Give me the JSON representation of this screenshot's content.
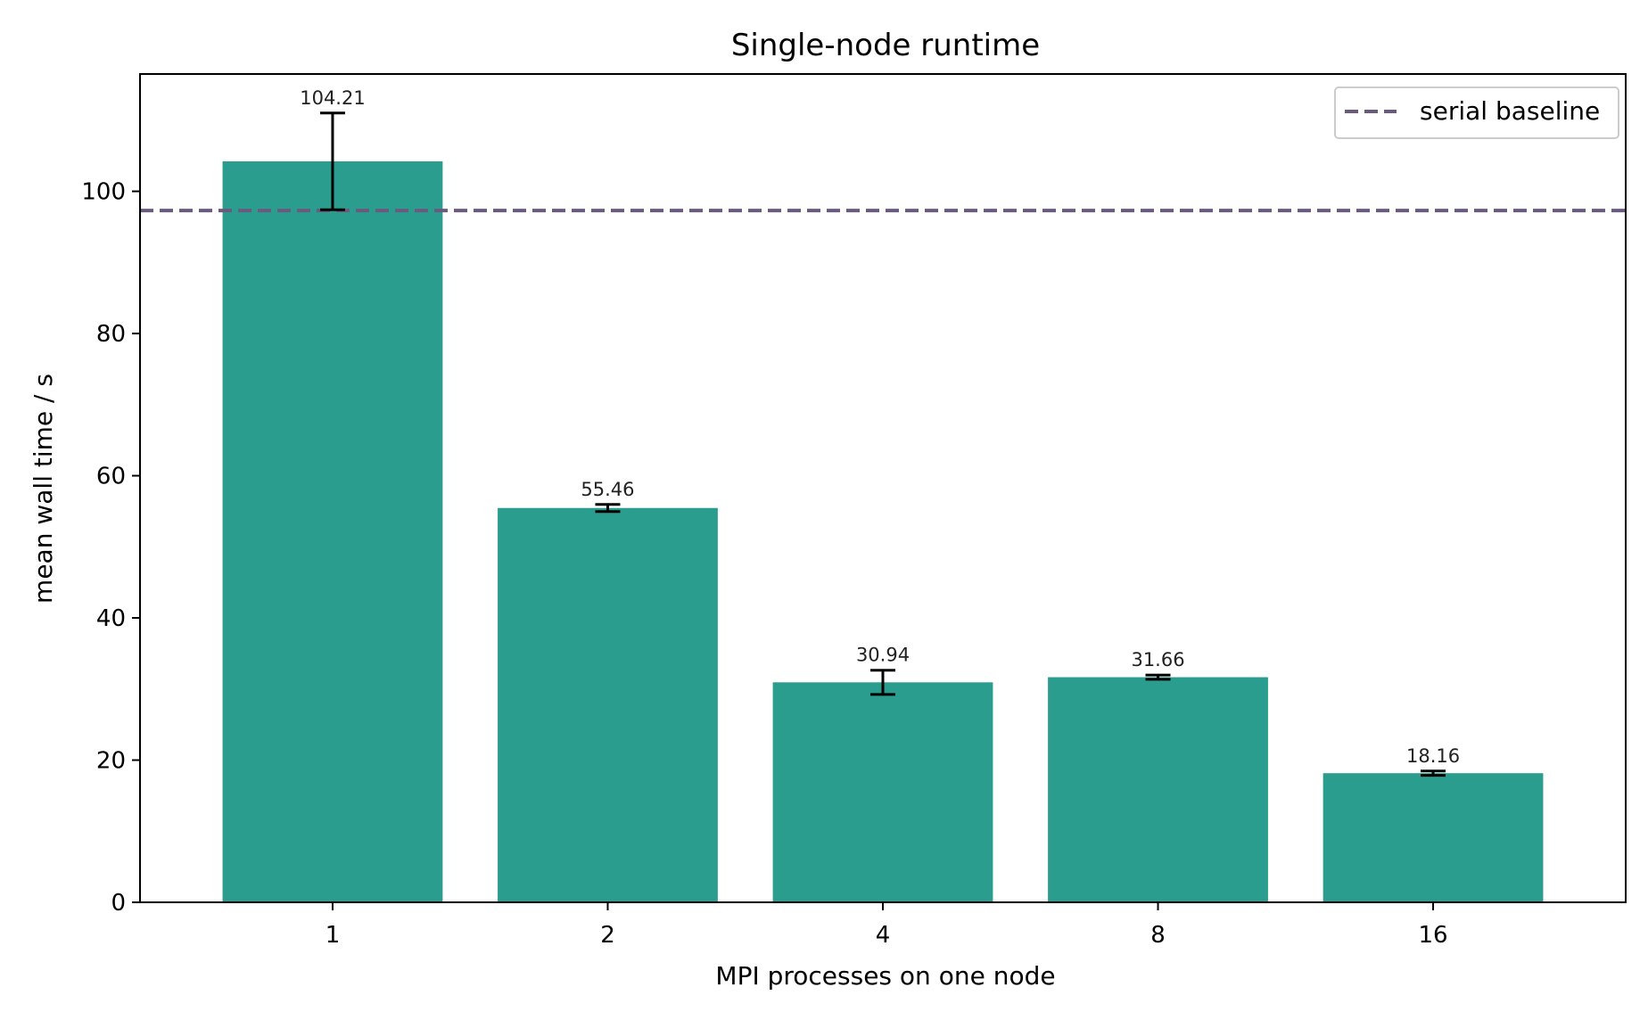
{
  "chart_data": {
    "type": "bar",
    "title": "Single-node runtime",
    "xlabel": "MPI processes on one node",
    "ylabel": "mean wall time / s",
    "categories": [
      "1",
      "2",
      "4",
      "8",
      "16"
    ],
    "values": [
      104.21,
      55.46,
      30.94,
      31.66,
      18.16
    ],
    "value_labels": [
      "104.21",
      "55.46",
      "30.94",
      "31.66",
      "18.16"
    ],
    "error_bars": [
      6.8,
      0.5,
      1.7,
      0.3,
      0.3
    ],
    "ylim": [
      0,
      116.5
    ],
    "yticks": [
      0,
      20,
      40,
      60,
      80,
      100
    ],
    "ytick_labels": [
      "0",
      "20",
      "40",
      "60",
      "80",
      "100"
    ],
    "baseline": {
      "name": "serial baseline",
      "value": 97.3
    },
    "grid": false,
    "legend": {
      "position": "top-right",
      "entries": [
        "serial baseline"
      ]
    },
    "colors": {
      "bar": "#2a9d8f",
      "baseline": "#6a5a7e",
      "error": "#000000",
      "axis": "#000000"
    }
  }
}
